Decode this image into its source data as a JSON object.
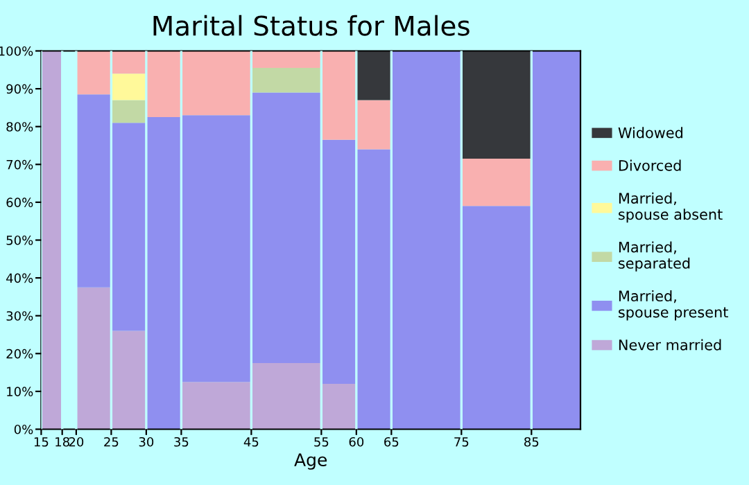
{
  "chart_data": {
    "type": "bar",
    "stacked": true,
    "title": "Marital Status for Males",
    "xlabel": "Age",
    "x": [
      16.5,
      19,
      22.5,
      27.5,
      32.5,
      40,
      50,
      57.5,
      62.5,
      70,
      80,
      88.5
    ],
    "xlim": [
      15,
      92
    ],
    "xticks": [
      15,
      18,
      20,
      25,
      30,
      35,
      45,
      55,
      60,
      65,
      75,
      85
    ],
    "ylim": [
      0,
      100
    ],
    "yticks": [
      {
        "value": 0,
        "label": "0%"
      },
      {
        "value": 10,
        "label": "10%"
      },
      {
        "value": 20,
        "label": "20%"
      },
      {
        "value": 30,
        "label": "30%"
      },
      {
        "value": 40,
        "label": "40%"
      },
      {
        "value": 50,
        "label": "50%"
      },
      {
        "value": 60,
        "label": "60%"
      },
      {
        "value": 70,
        "label": "70%"
      },
      {
        "value": 80,
        "label": "80%"
      },
      {
        "value": 90,
        "label": "90%"
      },
      {
        "value": 100,
        "label": "100%"
      }
    ],
    "legend": "right",
    "grid": "x",
    "series": [
      {
        "name": "Never married",
        "color": "#bfa8d8",
        "values": [
          100,
          null,
          37.5,
          26,
          null,
          12.5,
          17.5,
          12,
          null,
          null,
          null,
          null
        ]
      },
      {
        "name": "Married, spouse present",
        "color": "#8f8ff0",
        "values": [
          null,
          null,
          51,
          55,
          82.5,
          70.5,
          71.5,
          64.5,
          74,
          100,
          59,
          100
        ]
      },
      {
        "name": "Married, separated",
        "color": "#c2d9a5",
        "values": [
          null,
          null,
          null,
          6,
          null,
          null,
          6.5,
          null,
          null,
          null,
          null,
          null
        ]
      },
      {
        "name": "Married, spouse absent",
        "color": "#fff99a",
        "values": [
          null,
          null,
          null,
          7,
          null,
          null,
          null,
          null,
          null,
          null,
          null,
          null
        ]
      },
      {
        "name": "Divorced",
        "color": "#f9b0b0",
        "values": [
          null,
          null,
          11.5,
          6,
          17.5,
          17,
          4.5,
          23.5,
          13,
          null,
          12.5,
          null
        ]
      },
      {
        "name": "Widowed",
        "color": "#36383c",
        "values": [
          null,
          null,
          null,
          null,
          null,
          null,
          null,
          null,
          13,
          null,
          28.5,
          null
        ]
      }
    ]
  }
}
